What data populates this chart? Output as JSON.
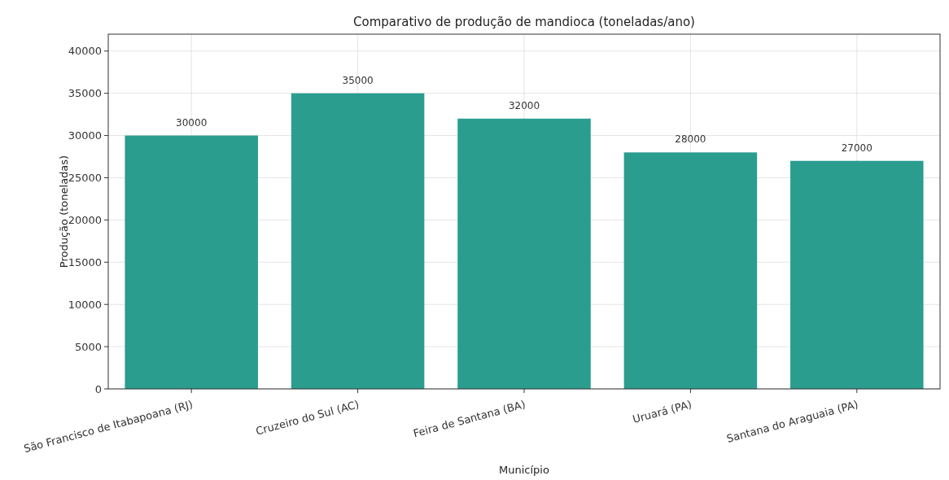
{
  "chart_data": {
    "type": "bar",
    "title": "Comparativo de produção de mandioca (toneladas/ano)",
    "xlabel": "Município",
    "ylabel": "Produção (toneladas)",
    "categories": [
      "São Francisco de Itabapoana (RJ)",
      "Cruzeiro do Sul (AC)",
      "Feira de Santana (BA)",
      "Uruará (PA)",
      "Santana do Araguaia (PA)"
    ],
    "values": [
      30000,
      35000,
      32000,
      28000,
      27000
    ],
    "color": "#2a9d8f",
    "ylim": [
      0,
      42000
    ],
    "yticks": [
      0,
      5000,
      10000,
      15000,
      20000,
      25000,
      30000,
      35000,
      40000
    ],
    "grid": true,
    "data_labels": true
  }
}
